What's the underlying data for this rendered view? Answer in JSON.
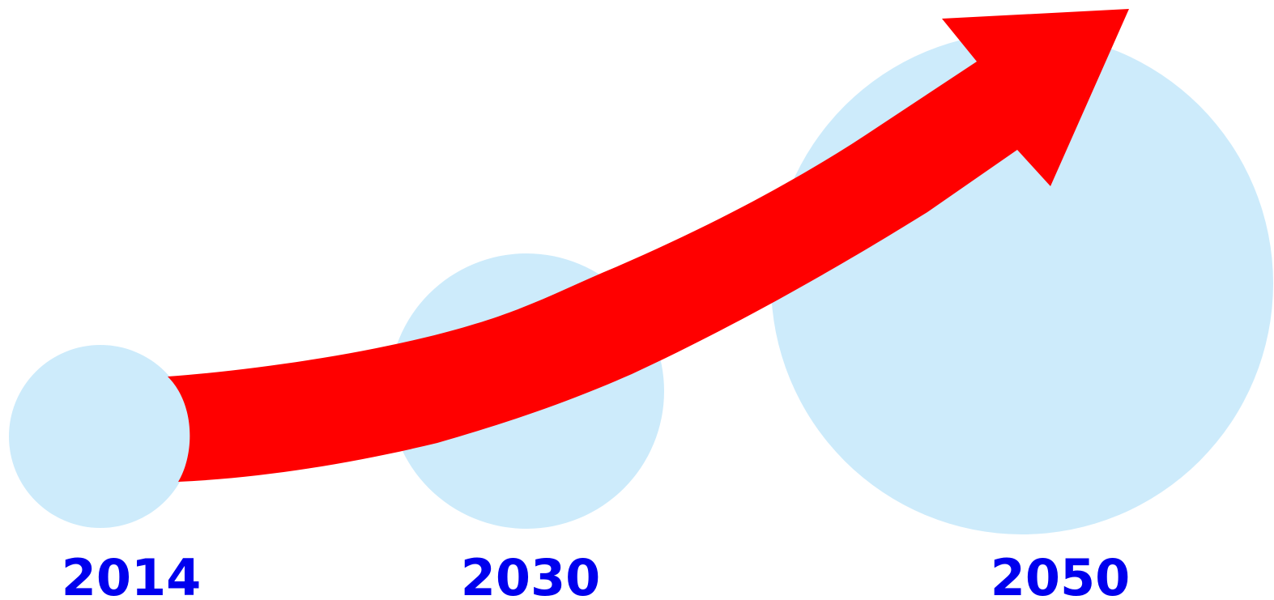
{
  "colors": {
    "background": "#ffffff",
    "circle_fill": "#cdebfb",
    "arrow_fill": "#ff0000",
    "label_color": "#0000ee"
  },
  "milestones": [
    {
      "year_label": "2014"
    },
    {
      "year_label": "2030"
    },
    {
      "year_label": "2050"
    }
  ],
  "arrow": {
    "direction": "rising-right"
  }
}
